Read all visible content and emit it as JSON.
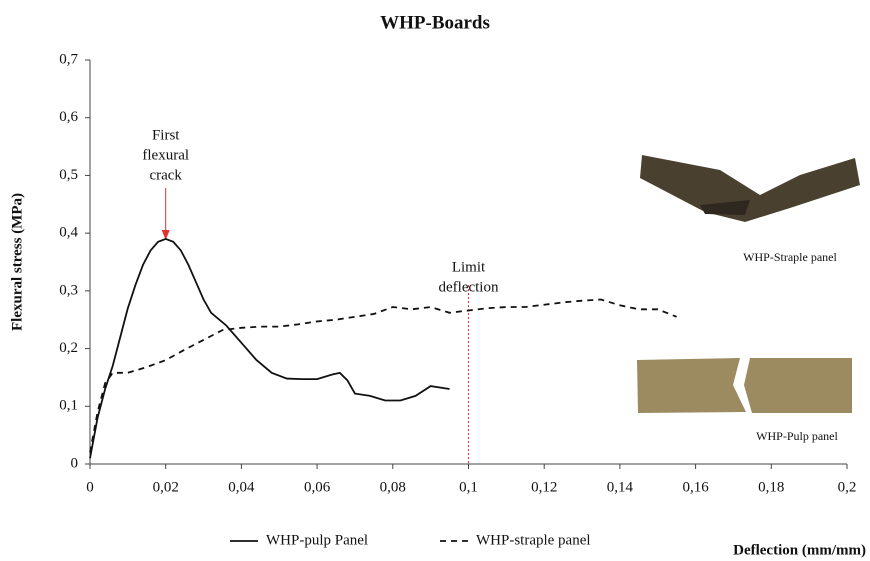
{
  "chart_data": {
    "type": "line",
    "title": "WHP-Boards",
    "x_label": "Deflection (mm/mm)",
    "y_label": "Flexural stress (MPa)",
    "xlim": [
      0,
      0.2
    ],
    "ylim": [
      0,
      0.7
    ],
    "xticks": [
      0,
      {
        "value": 0.02,
        "label": "0,02"
      },
      {
        "value": 0.04,
        "label": "0,04"
      },
      {
        "value": 0.06,
        "label": "0,06"
      },
      {
        "value": 0.08,
        "label": "0,08"
      },
      {
        "value": 0.1,
        "label": "0,1"
      },
      {
        "value": 0.12,
        "label": "0,12"
      },
      {
        "value": 0.14,
        "label": "0,14"
      },
      {
        "value": 0.16,
        "label": "0,16"
      },
      {
        "value": 0.18,
        "label": "0,18"
      },
      {
        "value": 0.2,
        "label": "0,2"
      }
    ],
    "yticks": [
      0,
      {
        "value": 0.1,
        "label": "0,1"
      },
      {
        "value": 0.2,
        "label": "0,2"
      },
      {
        "value": 0.3,
        "label": "0,3"
      },
      {
        "value": 0.4,
        "label": "0,4"
      },
      {
        "value": 0.5,
        "label": "0,5"
      },
      {
        "value": 0.6,
        "label": "0,6"
      },
      {
        "value": 0.7,
        "label": "0,7"
      }
    ],
    "series": [
      {
        "name": "WHP-pulp Panel",
        "color": "#111111",
        "dash": "solid",
        "x": [
          0,
          0.002,
          0.004,
          0.006,
          0.008,
          0.01,
          0.012,
          0.014,
          0.016,
          0.018,
          0.02,
          0.022,
          0.024,
          0.026,
          0.028,
          0.03,
          0.032,
          0.036,
          0.04,
          0.044,
          0.048,
          0.052,
          0.056,
          0.06,
          0.064,
          0.066,
          0.068,
          0.07,
          0.074,
          0.078,
          0.082,
          0.086,
          0.09,
          0.095
        ],
        "values": [
          0.01,
          0.08,
          0.13,
          0.17,
          0.22,
          0.27,
          0.31,
          0.345,
          0.37,
          0.385,
          0.39,
          0.385,
          0.37,
          0.345,
          0.315,
          0.285,
          0.262,
          0.24,
          0.21,
          0.18,
          0.158,
          0.148,
          0.147,
          0.147,
          0.155,
          0.158,
          0.145,
          0.122,
          0.118,
          0.11,
          0.11,
          0.118,
          0.135,
          0.13
        ]
      },
      {
        "name": "WHP-straple panel",
        "color": "#111111",
        "dash": "dashed",
        "x": [
          0,
          0.002,
          0.004,
          0.006,
          0.01,
          0.015,
          0.02,
          0.025,
          0.03,
          0.035,
          0.04,
          0.045,
          0.05,
          0.055,
          0.06,
          0.065,
          0.07,
          0.075,
          0.08,
          0.085,
          0.09,
          0.095,
          0.1,
          0.105,
          0.11,
          0.115,
          0.12,
          0.125,
          0.13,
          0.135,
          0.14,
          0.145,
          0.15,
          0.155
        ],
        "values": [
          0.02,
          0.09,
          0.14,
          0.158,
          0.158,
          0.168,
          0.18,
          0.198,
          0.215,
          0.232,
          0.236,
          0.238,
          0.238,
          0.242,
          0.247,
          0.25,
          0.255,
          0.26,
          0.272,
          0.268,
          0.272,
          0.262,
          0.266,
          0.27,
          0.272,
          0.272,
          0.276,
          0.28,
          0.283,
          0.285,
          0.275,
          0.268,
          0.268,
          0.255
        ]
      }
    ],
    "annotations": [
      {
        "lines": [
          "First",
          "flexural",
          "crack"
        ],
        "x": 0.02,
        "color": "#e03030",
        "style": "arrow"
      },
      {
        "lines": [
          "Limit",
          "deflection"
        ],
        "x": 0.1,
        "color": "#e03030",
        "style": "vline"
      }
    ],
    "image_labels": [
      "WHP-Straple panel",
      "WHP-Pulp panel"
    ]
  }
}
